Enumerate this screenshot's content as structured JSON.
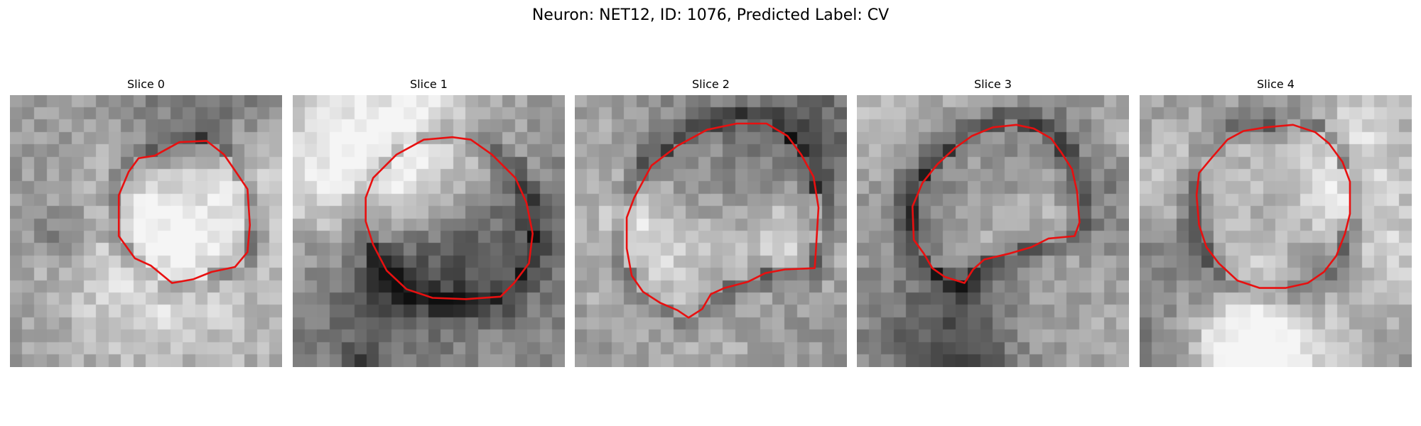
{
  "figure": {
    "title": "Neuron: NET12, ID: 1076, Predicted Label: CV"
  },
  "colors": {
    "contour": "#e81010",
    "background": "#ffffff"
  },
  "slices": [
    {
      "label": "Slice 0",
      "contour": [
        [
          11.7,
          4.9
        ],
        [
          13.7,
          3.8
        ],
        [
          15.9,
          3.7
        ],
        [
          17.3,
          4.8
        ],
        [
          18.2,
          6.1
        ],
        [
          19.2,
          7.6
        ],
        [
          19.4,
          10.5
        ],
        [
          19.2,
          12.7
        ],
        [
          18.2,
          13.9
        ],
        [
          16.3,
          14.3
        ],
        [
          14.8,
          14.9
        ],
        [
          13.1,
          15.2
        ],
        [
          11.4,
          13.8
        ],
        [
          10.1,
          13.2
        ],
        [
          8.8,
          11.4
        ],
        [
          8.8,
          8.1
        ],
        [
          9.6,
          6.2
        ],
        [
          10.4,
          5.1
        ]
      ]
    },
    {
      "label": "Slice 1",
      "contour": [
        [
          6.5,
          6.7
        ],
        [
          8.4,
          4.8
        ],
        [
          10.6,
          3.6
        ],
        [
          12.9,
          3.4
        ],
        [
          14.4,
          3.6
        ],
        [
          16.1,
          4.8
        ],
        [
          18.0,
          6.7
        ],
        [
          18.9,
          8.7
        ],
        [
          19.4,
          11.2
        ],
        [
          19.1,
          13.6
        ],
        [
          17.9,
          15.2
        ],
        [
          16.8,
          16.3
        ],
        [
          14.0,
          16.5
        ],
        [
          11.3,
          16.4
        ],
        [
          9.2,
          15.7
        ],
        [
          7.6,
          14.2
        ],
        [
          6.5,
          12.1
        ],
        [
          5.9,
          10.2
        ],
        [
          5.9,
          8.3
        ]
      ]
    },
    {
      "label": "Slice 2",
      "contour": [
        [
          4.8,
          8.3
        ],
        [
          6.2,
          5.7
        ],
        [
          8.3,
          4.1
        ],
        [
          10.7,
          2.8
        ],
        [
          13.1,
          2.3
        ],
        [
          15.5,
          2.3
        ],
        [
          17.2,
          3.3
        ],
        [
          18.3,
          4.8
        ],
        [
          19.3,
          6.6
        ],
        [
          19.7,
          9.1
        ],
        [
          19.5,
          12.4
        ],
        [
          19.4,
          14.0
        ],
        [
          17.0,
          14.1
        ],
        [
          15.4,
          14.4
        ],
        [
          14.0,
          15.1
        ],
        [
          12.1,
          15.6
        ],
        [
          11.0,
          16.1
        ],
        [
          10.3,
          17.3
        ],
        [
          9.2,
          18.0
        ],
        [
          8.3,
          17.4
        ],
        [
          6.9,
          16.8
        ],
        [
          5.5,
          15.9
        ],
        [
          4.6,
          14.6
        ],
        [
          4.2,
          12.4
        ],
        [
          4.2,
          9.9
        ]
      ]
    },
    {
      "label": "Slice 3",
      "contour": [
        [
          4.5,
          9.0
        ],
        [
          5.3,
          7.1
        ],
        [
          6.5,
          5.6
        ],
        [
          7.9,
          4.3
        ],
        [
          9.3,
          3.3
        ],
        [
          11.0,
          2.6
        ],
        [
          12.9,
          2.4
        ],
        [
          14.3,
          2.7
        ],
        [
          15.7,
          3.5
        ],
        [
          16.5,
          4.6
        ],
        [
          17.4,
          6.0
        ],
        [
          17.8,
          7.8
        ],
        [
          18.0,
          10.3
        ],
        [
          17.6,
          11.4
        ],
        [
          15.5,
          11.6
        ],
        [
          14.1,
          12.3
        ],
        [
          12.4,
          12.8
        ],
        [
          10.3,
          13.3
        ],
        [
          9.4,
          14.1
        ],
        [
          8.7,
          15.2
        ],
        [
          7.1,
          14.7
        ],
        [
          6.1,
          14.0
        ],
        [
          5.4,
          12.8
        ],
        [
          4.6,
          11.7
        ]
      ]
    },
    {
      "label": "Slice 4",
      "contour": [
        [
          4.8,
          6.3
        ],
        [
          5.8,
          5.1
        ],
        [
          7.1,
          3.6
        ],
        [
          8.4,
          2.9
        ],
        [
          10.2,
          2.6
        ],
        [
          12.4,
          2.4
        ],
        [
          14.2,
          3.0
        ],
        [
          15.3,
          3.9
        ],
        [
          16.4,
          5.4
        ],
        [
          17.0,
          7.0
        ],
        [
          17.0,
          9.6
        ],
        [
          16.6,
          11.2
        ],
        [
          15.9,
          13.0
        ],
        [
          14.9,
          14.3
        ],
        [
          13.6,
          15.2
        ],
        [
          11.8,
          15.6
        ],
        [
          9.7,
          15.6
        ],
        [
          7.9,
          15.0
        ],
        [
          6.4,
          13.6
        ],
        [
          5.4,
          12.3
        ],
        [
          4.8,
          10.5
        ],
        [
          4.6,
          8.1
        ]
      ]
    }
  ]
}
